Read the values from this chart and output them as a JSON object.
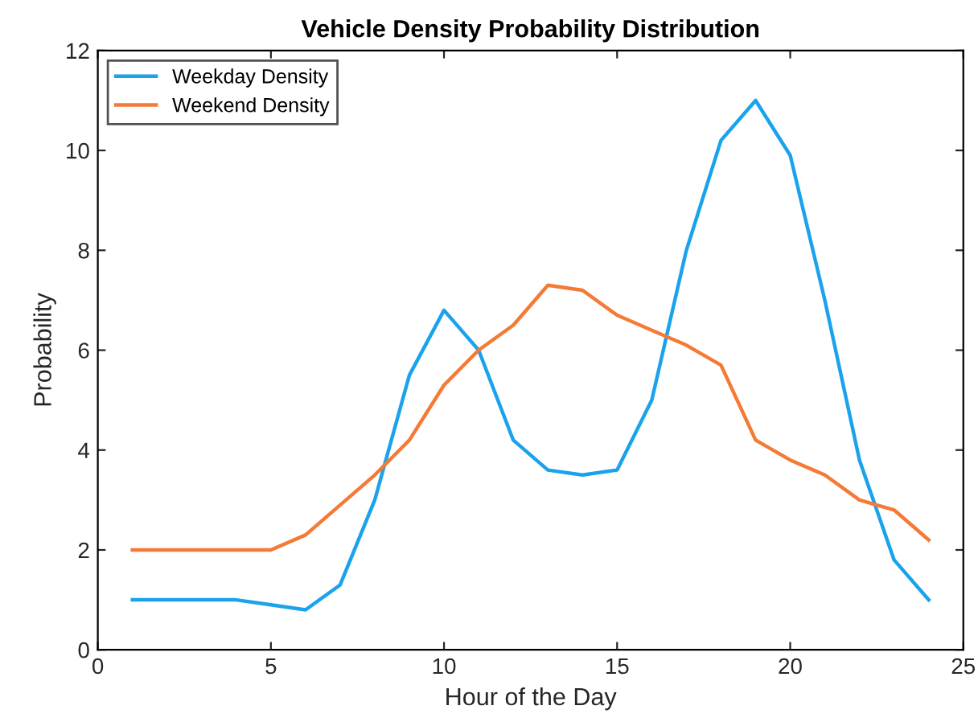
{
  "chart_data": {
    "type": "line",
    "title": "Vehicle Density Probability Distribution",
    "xlabel": "Hour of the Day",
    "ylabel": "Probability",
    "x": [
      1,
      2,
      3,
      4,
      5,
      6,
      7,
      8,
      9,
      10,
      11,
      12,
      13,
      14,
      15,
      16,
      17,
      18,
      19,
      20,
      21,
      22,
      23,
      24
    ],
    "series": [
      {
        "name": "Weekday Density",
        "color": "#1aa3ec",
        "values": [
          1,
          1,
          1,
          1,
          0.9,
          0.8,
          1.3,
          3.0,
          5.5,
          6.8,
          6.0,
          4.2,
          3.6,
          3.5,
          3.6,
          5.0,
          8.0,
          10.2,
          11.0,
          9.9,
          7.0,
          3.8,
          1.8,
          1.0
        ]
      },
      {
        "name": "Weekend Density",
        "color": "#f47a35",
        "values": [
          2,
          2,
          2,
          2,
          2,
          2.3,
          2.9,
          3.5,
          4.2,
          5.3,
          6.0,
          6.5,
          7.3,
          7.2,
          6.7,
          6.4,
          6.1,
          5.7,
          4.2,
          3.8,
          3.5,
          3.0,
          2.8,
          2.2
        ]
      }
    ],
    "xlim": [
      0,
      25
    ],
    "xticks": [
      0,
      5,
      10,
      15,
      20,
      25
    ],
    "ylim": [
      0,
      12
    ],
    "yticks": [
      0,
      2,
      4,
      6,
      8,
      10,
      12
    ],
    "legend": "top left",
    "grid": false,
    "marker": "none",
    "line_style": "solid"
  }
}
